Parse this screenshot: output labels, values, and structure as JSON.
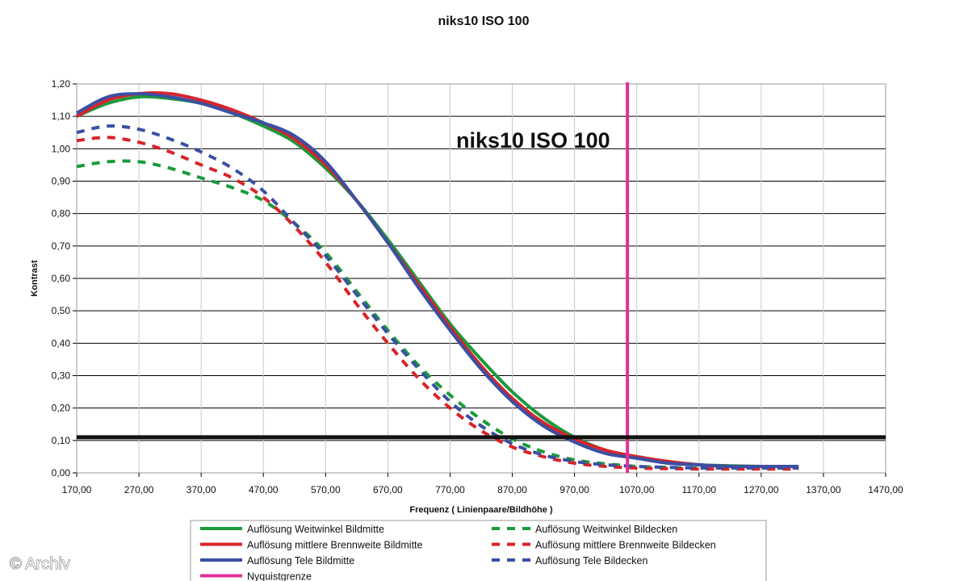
{
  "chart_data": {
    "type": "line",
    "title": "niks10 ISO 100",
    "annotation": "niks10 ISO 100",
    "xlabel": "Frequenz ( Linienpaare/Bildhöhe )",
    "ylabel": "Kontrast",
    "xlim": [
      170,
      1470
    ],
    "ylim": [
      0,
      1.2
    ],
    "x_ticks": [
      "170,00",
      "270,00",
      "370,00",
      "470,00",
      "570,00",
      "670,00",
      "770,00",
      "870,00",
      "970,00",
      "1070,00",
      "1170,00",
      "1270,00",
      "1370,00",
      "1470,00"
    ],
    "y_ticks": [
      "0,00",
      "0,10",
      "0,20",
      "0,30",
      "0,40",
      "0,50",
      "0,60",
      "0,70",
      "0,80",
      "0,90",
      "1,00",
      "1,10",
      "1,20"
    ],
    "grid": true,
    "legend_position": "bottom",
    "series": [
      {
        "name": "Auflösung Weitwinkel Bildmitte",
        "color": "#1a9a3a",
        "dash": false,
        "x": [
          170,
          220,
          270,
          320,
          370,
          420,
          470,
          520,
          570,
          620,
          670,
          720,
          770,
          820,
          870,
          920,
          970,
          1020,
          1070,
          1120,
          1170,
          1220,
          1270,
          1330
        ],
        "y": [
          1.1,
          1.14,
          1.16,
          1.155,
          1.14,
          1.11,
          1.07,
          1.02,
          0.94,
          0.84,
          0.72,
          0.59,
          0.46,
          0.35,
          0.25,
          0.17,
          0.11,
          0.07,
          0.05,
          0.035,
          0.025,
          0.022,
          0.02,
          0.02
        ]
      },
      {
        "name": "Auflösung mittlere Brennweite Bildmitte",
        "color": "#d8232a",
        "dash": false,
        "x": [
          170,
          220,
          270,
          320,
          370,
          420,
          470,
          520,
          570,
          620,
          670,
          720,
          770,
          820,
          870,
          920,
          970,
          1020,
          1070,
          1120,
          1170,
          1220,
          1270,
          1330
        ],
        "y": [
          1.1,
          1.15,
          1.17,
          1.17,
          1.15,
          1.12,
          1.08,
          1.03,
          0.95,
          0.84,
          0.71,
          0.58,
          0.45,
          0.33,
          0.23,
          0.155,
          0.105,
          0.07,
          0.05,
          0.035,
          0.025,
          0.02,
          0.02,
          0.02
        ]
      },
      {
        "name": "Auflösung Tele Bildmitte",
        "color": "#3b4fa3",
        "dash": false,
        "x": [
          170,
          220,
          270,
          320,
          370,
          420,
          470,
          520,
          570,
          620,
          670,
          720,
          770,
          820,
          870,
          920,
          970,
          1020,
          1070,
          1120,
          1170,
          1220,
          1270,
          1330
        ],
        "y": [
          1.11,
          1.16,
          1.17,
          1.16,
          1.14,
          1.11,
          1.08,
          1.04,
          0.96,
          0.84,
          0.71,
          0.57,
          0.44,
          0.32,
          0.22,
          0.145,
          0.095,
          0.06,
          0.045,
          0.03,
          0.025,
          0.02,
          0.02,
          0.02
        ]
      },
      {
        "name": "Auflösung Weitwinkel Bildecken",
        "color": "#1a9a3a",
        "dash": true,
        "x": [
          170,
          220,
          270,
          320,
          370,
          420,
          470,
          520,
          570,
          620,
          670,
          720,
          770,
          820,
          870,
          920,
          970,
          1020,
          1070,
          1120,
          1170,
          1220,
          1270,
          1330
        ],
        "y": [
          0.945,
          0.96,
          0.96,
          0.94,
          0.91,
          0.88,
          0.84,
          0.77,
          0.68,
          0.56,
          0.44,
          0.33,
          0.24,
          0.165,
          0.105,
          0.065,
          0.04,
          0.028,
          0.02,
          0.017,
          0.015,
          0.015,
          0.015,
          0.015
        ]
      },
      {
        "name": "Auflösung mittlere Brennweite Bildecken",
        "color": "#d8232a",
        "dash": true,
        "x": [
          170,
          220,
          270,
          320,
          370,
          420,
          470,
          520,
          570,
          620,
          670,
          720,
          770,
          820,
          870,
          920,
          970,
          1020,
          1070,
          1120,
          1170,
          1220,
          1270,
          1330
        ],
        "y": [
          1.025,
          1.035,
          1.02,
          0.99,
          0.95,
          0.91,
          0.85,
          0.76,
          0.65,
          0.52,
          0.4,
          0.29,
          0.2,
          0.13,
          0.08,
          0.05,
          0.03,
          0.02,
          0.015,
          0.013,
          0.012,
          0.012,
          0.012,
          0.012
        ]
      },
      {
        "name": "Auflösung Tele Bildecken",
        "color": "#3b4fa3",
        "dash": true,
        "x": [
          170,
          220,
          270,
          320,
          370,
          420,
          470,
          520,
          570,
          620,
          670,
          720,
          770,
          820,
          870,
          920,
          970,
          1020,
          1070,
          1120,
          1170,
          1220,
          1270,
          1330
        ],
        "y": [
          1.05,
          1.07,
          1.06,
          1.03,
          0.99,
          0.94,
          0.87,
          0.77,
          0.67,
          0.55,
          0.43,
          0.32,
          0.22,
          0.145,
          0.09,
          0.055,
          0.035,
          0.025,
          0.02,
          0.017,
          0.015,
          0.015,
          0.015,
          0.015
        ]
      }
    ],
    "reference_lines": [
      {
        "name": "Nyquistgrenze",
        "orientation": "vertical",
        "x": 1055,
        "color": "#e0309a"
      },
      {
        "orientation": "horizontal",
        "y": 0.11,
        "color": "#111111"
      }
    ],
    "legend": [
      {
        "label": "Auflösung Weitwinkel Bildmitte",
        "color": "#1a9a3a",
        "dash": false
      },
      {
        "label": "Auflösung Weitwinkel Bildecken",
        "color": "#1a9a3a",
        "dash": true
      },
      {
        "label": "Auflösung mittlere Brennweite Bildmitte",
        "color": "#d8232a",
        "dash": false
      },
      {
        "label": "Auflösung mittlere Brennweite Bildecken",
        "color": "#d8232a",
        "dash": true
      },
      {
        "label": "Auflösung Tele Bildmitte",
        "color": "#3b4fa3",
        "dash": false
      },
      {
        "label": "Auflösung Tele Bildecken",
        "color": "#3b4fa3",
        "dash": true
      },
      {
        "label": "Nyquistgrenze",
        "color": "#e0309a",
        "dash": false
      }
    ]
  },
  "watermark": "© Archiv"
}
